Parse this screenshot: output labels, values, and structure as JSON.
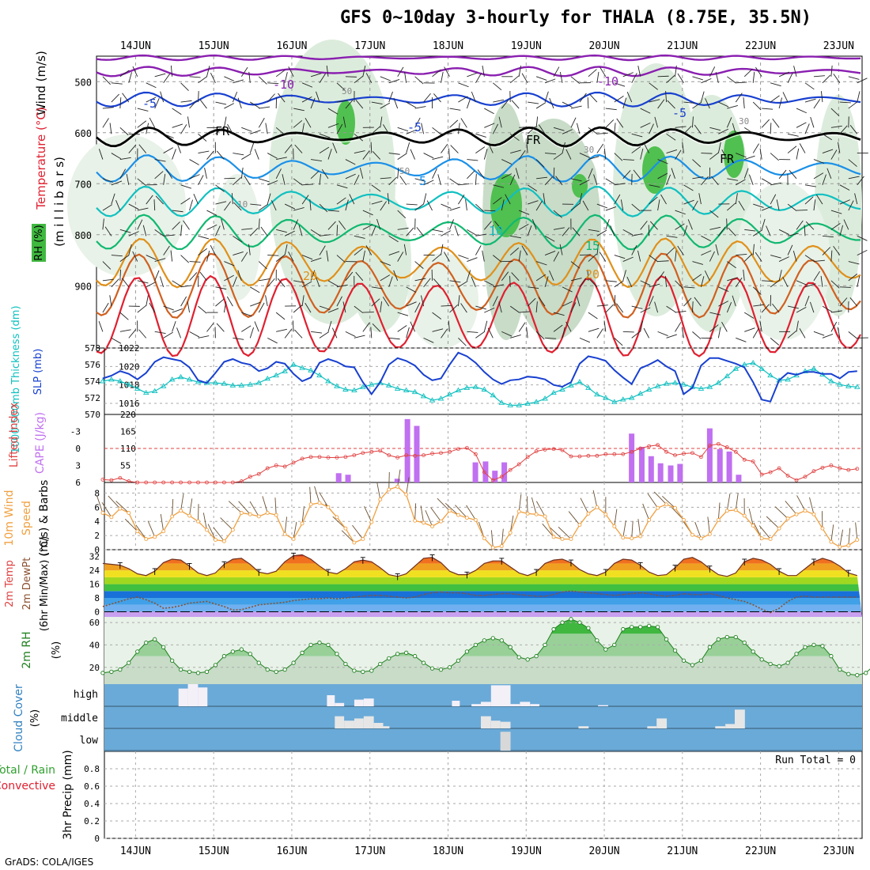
{
  "title": "GFS 0~10day 3-hourly for THALA (8.75E, 35.5N)",
  "footer": "GrADS: COLA/IGES",
  "dates": [
    "14JUN",
    "15JUN",
    "16JUN",
    "17JUN",
    "18JUN",
    "19JUN",
    "20JUN",
    "21JUN",
    "22JUN",
    "23JUN"
  ],
  "colors": {
    "purple": "#8a1fb0",
    "blue": "#1840d0",
    "lightblue": "#1a90e8",
    "teal": "#10c0c0",
    "green": "#10b870",
    "orange": "#e0901a",
    "red": "#e02030",
    "cape": "#c070f0",
    "lifted": "#e04040",
    "wind": "#f0a040",
    "rh_green": "#30a030",
    "cloud_bg": "#6aaad8"
  },
  "labels": {
    "upper_wind": "Wind (m/s)",
    "upper_temp": "Temperature (°C)",
    "upper_rh": "RH (%)",
    "upper_axis": "(m i l l i b a r s)",
    "slp": "SLP (mb)",
    "thick": "1000-500mb Thickness (dm)",
    "lifted": "Lifted Index",
    "cape": "CAPE (J/kg)",
    "wind10_a": "10m Wind",
    "wind10_b": "Speed",
    "wind10_c": "(m/s) & Barbs",
    "temp_a": "2m Temp",
    "temp_b": "2m DewPt",
    "temp_c": "(6hr Min/Max) (°C)",
    "rh2m": "2m RH",
    "rh2m_unit": "(%)",
    "cloud": "Cloud Cover",
    "cloud_unit": "(%)",
    "precip_a": "Total / Rain",
    "precip_b": "Convective",
    "precip_c": "3hr Precip (mm)",
    "run_total": "Run Total = 0",
    "cloud_high": "high",
    "cloud_middle": "middle",
    "cloud_low": "low",
    "fr": "FR"
  },
  "chart_data": [
    {
      "panel": "upper_air",
      "type": "heatmap",
      "y_axis": "millibars",
      "yticks": [
        500,
        600,
        700,
        800,
        900
      ],
      "temperature_contours_C": [
        -10,
        -5,
        0,
        5,
        10,
        15,
        20,
        25,
        30
      ],
      "contour_labels": [
        "-10",
        "-10",
        "-5",
        "-5",
        "-5",
        "FR",
        "FR",
        "FR",
        "5",
        "10",
        "15",
        "20",
        "20",
        "30",
        "30",
        "50",
        "50",
        "10"
      ]
    },
    {
      "panel": "slp_thickness",
      "type": "line",
      "slp_ylim": [
        1014.8,
        1022
      ],
      "slp_ticks": [
        1016,
        1018,
        1020,
        1022
      ],
      "thick_ticks": [
        570,
        572,
        574,
        576,
        578
      ],
      "slp": [
        1018.7,
        1019.0,
        1019.5,
        1019.2,
        1018.6,
        1019.3,
        1020.5,
        1021.0,
        1020.8,
        1020.6,
        1019.9,
        1018.5,
        1018.2,
        1019.3,
        1020.5,
        1020.8,
        1020.4,
        1020.2,
        1019.5,
        1019.8,
        1020.5,
        1020.3,
        1019.2,
        1018.4,
        1018.8,
        1020.4,
        1020.8,
        1020.5,
        1020.0,
        1019.9,
        1018.3,
        1017.0,
        1018.3,
        1020.2,
        1020.9,
        1020.6,
        1020.1,
        1019.1,
        1018.5,
        1018.7,
        1020.2,
        1021.5,
        1021.1,
        1020.4,
        1019.4,
        1018.6,
        1018.1,
        1018.5,
        1018.6,
        1018.9,
        1018.8,
        1018.6,
        1018.0,
        1017.8,
        1018.3,
        1020.3,
        1021.1,
        1020.9,
        1020.6,
        1019.6,
        1018.8,
        1018.1,
        1019.8,
        1020.2,
        1020.7,
        1020.0,
        1019.5,
        1017.0,
        1017.7,
        1020.1,
        1020.9,
        1020.9,
        1020.6,
        1020.3,
        1019.9,
        1018.3,
        1016.4,
        1016.2,
        1018.5,
        1019.3,
        1019.1,
        1019.4,
        1019.4,
        1019.2,
        1019.2,
        1018.7,
        1019.4,
        1019.5
      ],
      "thickness": [
        574.0,
        574.2,
        574.0,
        573.6,
        573.1,
        572.6,
        572.8,
        573.4,
        574.2,
        574.5,
        574.2,
        573.9,
        573.8,
        573.8,
        573.7,
        573.5,
        573.5,
        573.6,
        573.8,
        574.3,
        574.7,
        575.2,
        576.0,
        575.6,
        575.3,
        574.7,
        574.0,
        573.4,
        573.0,
        572.9,
        573.3,
        573.6,
        573.8,
        573.5,
        573.1,
        572.9,
        572.7,
        572.2,
        571.7,
        571.9,
        572.4,
        572.9,
        573.2,
        573.3,
        573.0,
        572.3,
        571.4,
        571.1,
        571.1,
        571.3,
        571.5,
        571.9,
        572.6,
        573.0,
        573.5,
        573.9,
        573.2,
        572.4,
        572.0,
        571.5,
        571.8,
        572.0,
        572.5,
        573.0,
        573.4,
        573.7,
        573.8,
        573.6,
        573.3,
        573.1,
        573.3,
        573.8,
        574.6,
        575.5,
        576.0,
        576.2,
        575.5,
        574.7,
        574.1,
        574.2,
        574.7,
        575.2,
        575.5,
        574.8,
        574.0,
        573.6,
        573.4,
        573.3
      ]
    },
    {
      "panel": "lifted_cape",
      "type": "bar",
      "lifted_ticks": [
        -3,
        0,
        3,
        6
      ],
      "cape_ticks": [
        55,
        110,
        165,
        220
      ],
      "cape_bars": [
        {
          "day": 16.6,
          "value": 30
        },
        {
          "day": 16.72,
          "value": 25
        },
        {
          "day": 17.35,
          "value": 12
        },
        {
          "day": 17.48,
          "value": 205
        },
        {
          "day": 17.6,
          "value": 183
        },
        {
          "day": 18.35,
          "value": 65
        },
        {
          "day": 18.48,
          "value": 68
        },
        {
          "day": 18.6,
          "value": 38
        },
        {
          "day": 18.72,
          "value": 65
        },
        {
          "day": 20.35,
          "value": 158
        },
        {
          "day": 20.48,
          "value": 115
        },
        {
          "day": 20.6,
          "value": 85
        },
        {
          "day": 20.72,
          "value": 62
        },
        {
          "day": 20.85,
          "value": 55
        },
        {
          "day": 20.97,
          "value": 60
        },
        {
          "day": 21.35,
          "value": 175
        },
        {
          "day": 21.48,
          "value": 108
        },
        {
          "day": 21.6,
          "value": 100
        },
        {
          "day": 21.72,
          "value": 25
        }
      ],
      "lifted_index": [
        5.5,
        5.6,
        5.2,
        5.8,
        6.0,
        6.0,
        6.0,
        6.0,
        6.0,
        6.0,
        6.0,
        6.0,
        6.0,
        6.0,
        6.0,
        6.0,
        5.8,
        5.0,
        4.5,
        3.5,
        3.0,
        3.2,
        2.5,
        1.8,
        1.5,
        1.5,
        1.6,
        1.6,
        1.5,
        1.2,
        0.8,
        0.6,
        0.4,
        1.2,
        1.6,
        1.2,
        1.3,
        1.2,
        0.9,
        0.8,
        0.6,
        0.1,
        -0.1,
        1.0,
        4.2,
        5.6,
        5.0,
        3.8,
        2.8,
        1.5,
        0.5,
        0.2,
        0.1,
        0.3,
        1.4,
        1.4,
        1.3,
        1.3,
        1.0,
        1.0,
        1.0,
        0.6,
        0.0,
        -0.4,
        -0.6,
        0.6,
        1.2,
        0.9,
        0.8,
        1.5,
        -0.5,
        -0.8,
        -0.2,
        0.6,
        2.0,
        2.3,
        4.6,
        4.2,
        3.5,
        4.8,
        5.6,
        5.0,
        4.0,
        3.4,
        3.0,
        3.5,
        3.8,
        3.6
      ]
    },
    {
      "panel": "wind10m",
      "type": "line",
      "ylim": [
        0,
        9.5
      ],
      "yticks": [
        0,
        2,
        4,
        6,
        8
      ],
      "speed": [
        5.2,
        4.6,
        5.8,
        5.2,
        2.6,
        1.5,
        1.8,
        2.6,
        4.7,
        5.5,
        4.8,
        4.0,
        2.8,
        1.4,
        1.2,
        2.8,
        5.2,
        5.0,
        4.7,
        5.2,
        4.9,
        2.2,
        1.5,
        3.7,
        6.4,
        6.6,
        6.0,
        4.6,
        3.0,
        1.0,
        1.5,
        3.9,
        7.1,
        8.5,
        8.9,
        7.8,
        4.1,
        3.8,
        3.3,
        4.0,
        5.5,
        4.9,
        4.5,
        4.2,
        1.6,
        0.3,
        0.5,
        2.4,
        5.4,
        5.1,
        5.0,
        4.7,
        1.8,
        1.5,
        1.5,
        3.5,
        5.1,
        6.0,
        5.0,
        3.3,
        1.7,
        1.6,
        1.9,
        4.2,
        5.9,
        6.4,
        5.9,
        4.2,
        2.1,
        1.6,
        2.2,
        4.2,
        5.5,
        5.6,
        4.8,
        3.4,
        1.6,
        1.5,
        3.0,
        4.4,
        5.0,
        5.5,
        5.0,
        3.0,
        1.1,
        0.4,
        0.6,
        1.4
      ]
    },
    {
      "panel": "temperature",
      "type": "area",
      "ylim": [
        -3,
        36
      ],
      "yticks": [
        0,
        8,
        16,
        24,
        32
      ],
      "temp": [
        28,
        27.5,
        27,
        25,
        22,
        21,
        23.5,
        28.5,
        30.5,
        30,
        26.5,
        22.5,
        21,
        22.5,
        27.5,
        30.5,
        31,
        27.5,
        23,
        22,
        23.5,
        29,
        32.5,
        33,
        30.5,
        26.5,
        23,
        22,
        25,
        29,
        30,
        29,
        25.5,
        21.5,
        20.5,
        22,
        26.5,
        31,
        31.5,
        28.5,
        23.5,
        21.5,
        21.5,
        24,
        28,
        29.5,
        29.5,
        26,
        22.5,
        21,
        23,
        28,
        30,
        30.5,
        28.5,
        24.5,
        22,
        21,
        23,
        28,
        30.5,
        30,
        27,
        23,
        21,
        21.5,
        25.5,
        30.5,
        31.5,
        29,
        25,
        21.5,
        20.5,
        22.5,
        29,
        31,
        30,
        27.5,
        23.5,
        21,
        21,
        25,
        29,
        31,
        29.5,
        26.5,
        22.5,
        21
      ],
      "dewpoint": [
        3,
        4.5,
        6,
        7.5,
        8.5,
        7,
        5,
        2,
        2.5,
        3.5,
        5,
        5.5,
        6,
        4.5,
        3,
        1,
        1.2,
        2.5,
        4,
        4.5,
        5,
        5.5,
        6.5,
        7,
        7.5,
        7.5,
        8,
        7.5,
        8,
        8.5,
        9,
        9.5,
        9.5,
        9,
        8.5,
        8,
        8.5,
        10,
        11,
        11.5,
        11,
        11,
        10.5,
        9.5,
        9.5,
        10,
        10.5,
        10.5,
        10,
        9.5,
        9,
        9,
        10,
        11.5,
        12,
        11.5,
        11,
        10.5,
        10,
        9.5,
        10,
        10.5,
        11,
        10.5,
        9.5,
        9,
        9.5,
        10.5,
        10,
        10,
        10.5,
        9.5,
        8,
        7,
        6,
        4,
        1.5,
        -0.5,
        2,
        6,
        8.5,
        9,
        8.5,
        8.5,
        8.5,
        8.5,
        8.5,
        8.5
      ]
    },
    {
      "panel": "rh2m",
      "type": "area",
      "ylim": [
        5,
        65
      ],
      "yticks": [
        20,
        40,
        60
      ],
      "rh": [
        15,
        16,
        18,
        24,
        34,
        42,
        45,
        38,
        26,
        18,
        16,
        15,
        16,
        22,
        30,
        34,
        36,
        32,
        24,
        18,
        16,
        18,
        24,
        33,
        40,
        42,
        40,
        32,
        23,
        17,
        16,
        17,
        23,
        28,
        32,
        33,
        30,
        24,
        19,
        18,
        20,
        26,
        34,
        40,
        44,
        46,
        44,
        38,
        29,
        27,
        30,
        40,
        54,
        60,
        63,
        60,
        55,
        44,
        36,
        40,
        54,
        56,
        56,
        57,
        56,
        45,
        35,
        26,
        22,
        26,
        38,
        45,
        47,
        47,
        42,
        34,
        27,
        23,
        21,
        24,
        32,
        38,
        40,
        39,
        30,
        18,
        14,
        13,
        15,
        22,
        34,
        42,
        46,
        47,
        38
      ],
      "rh_shading_levels": [
        30,
        50
      ]
    },
    {
      "panel": "cloud_cover",
      "type": "bar",
      "levels": [
        "high",
        "middle",
        "low"
      ],
      "high_segments": [
        {
          "d0": 14.55,
          "d1": 14.67,
          "v": 0.8
        },
        {
          "d0": 14.67,
          "d1": 14.8,
          "v": 1.0
        },
        {
          "d0": 14.8,
          "d1": 14.92,
          "v": 0.85
        },
        {
          "d0": 16.45,
          "d1": 16.55,
          "v": 0.5
        },
        {
          "d0": 16.55,
          "d1": 16.67,
          "v": 0.15
        },
        {
          "d0": 16.8,
          "d1": 16.92,
          "v": 0.3
        },
        {
          "d0": 16.92,
          "d1": 17.05,
          "v": 0.35
        },
        {
          "d0": 18.05,
          "d1": 18.15,
          "v": 0.25
        },
        {
          "d0": 18.3,
          "d1": 18.42,
          "v": 0.1
        },
        {
          "d0": 18.42,
          "d1": 18.55,
          "v": 0.2
        },
        {
          "d0": 18.55,
          "d1": 18.8,
          "v": 0.95
        },
        {
          "d0": 18.8,
          "d1": 18.92,
          "v": 0.1
        },
        {
          "d0": 18.92,
          "d1": 19.05,
          "v": 0.2
        },
        {
          "d0": 19.05,
          "d1": 19.17,
          "v": 0.1
        },
        {
          "d0": 19.92,
          "d1": 20.05,
          "v": 0.05
        }
      ],
      "mid_segments": [
        {
          "d0": 16.55,
          "d1": 16.67,
          "v": 0.55
        },
        {
          "d0": 16.67,
          "d1": 16.8,
          "v": 0.35
        },
        {
          "d0": 16.8,
          "d1": 16.92,
          "v": 0.45
        },
        {
          "d0": 16.92,
          "d1": 17.05,
          "v": 0.55
        },
        {
          "d0": 17.05,
          "d1": 17.17,
          "v": 0.25
        },
        {
          "d0": 17.17,
          "d1": 17.25,
          "v": 0.1
        },
        {
          "d0": 18.42,
          "d1": 18.55,
          "v": 0.55
        },
        {
          "d0": 18.55,
          "d1": 18.67,
          "v": 0.35
        },
        {
          "d0": 18.67,
          "d1": 18.8,
          "v": 0.3
        },
        {
          "d0": 19.67,
          "d1": 19.8,
          "v": 0.1
        },
        {
          "d0": 20.55,
          "d1": 20.67,
          "v": 0.1
        },
        {
          "d0": 20.67,
          "d1": 20.8,
          "v": 0.45
        },
        {
          "d0": 21.42,
          "d1": 21.55,
          "v": 0.1
        },
        {
          "d0": 21.55,
          "d1": 21.67,
          "v": 0.2
        },
        {
          "d0": 21.67,
          "d1": 21.8,
          "v": 0.85
        }
      ],
      "low_segments": [
        {
          "d0": 18.67,
          "d1": 18.8,
          "v": 0.85
        }
      ]
    },
    {
      "panel": "precip",
      "type": "bar",
      "ylim": [
        0,
        1.0
      ],
      "yticks": [
        0,
        0.2,
        0.4,
        0.6,
        0.8
      ],
      "values": []
    }
  ]
}
